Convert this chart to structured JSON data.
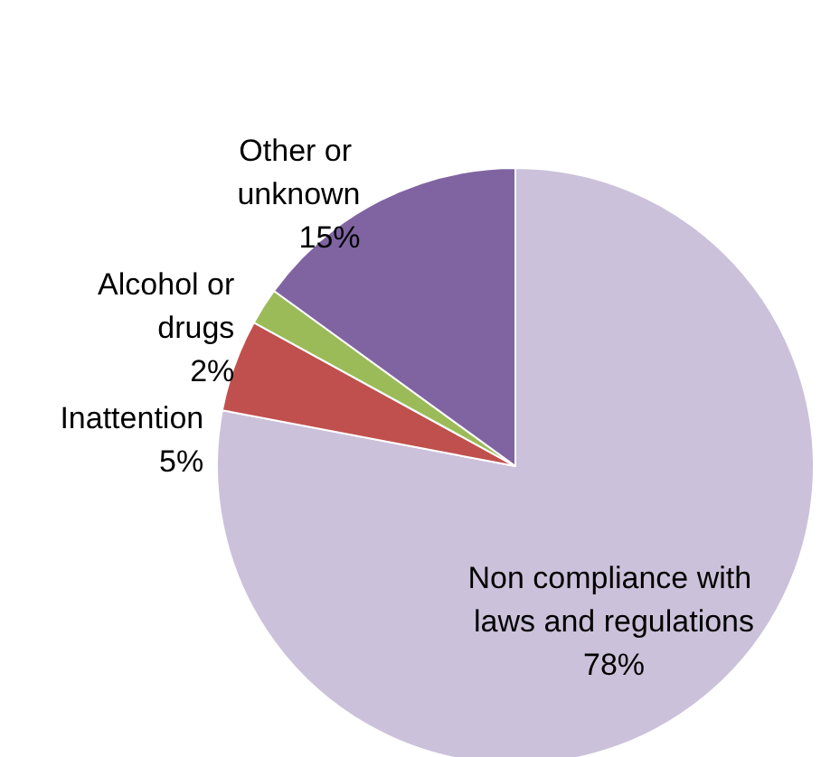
{
  "chart_data": {
    "type": "pie",
    "categories": [
      "Non compliance with laws and regulations",
      "Inattention",
      "Alcohol or drugs",
      "Other or unknown"
    ],
    "values": [
      78,
      5,
      2,
      15
    ],
    "colors": [
      "#ccc1da",
      "#c0504d",
      "#9bbb59",
      "#8064a2"
    ],
    "value_labels": [
      "78%",
      "5%",
      "2%",
      "15%"
    ],
    "legend": false
  }
}
